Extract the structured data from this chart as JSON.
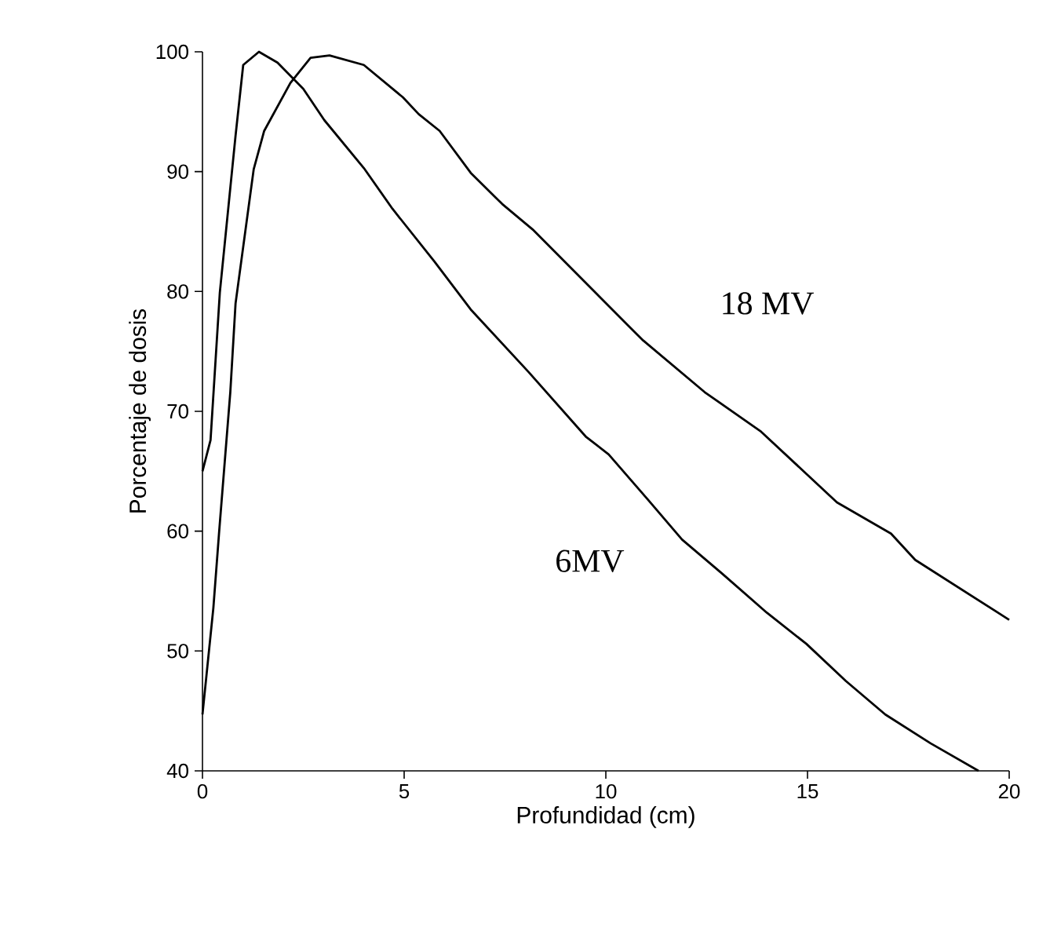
{
  "chart_data": {
    "type": "line",
    "xlabel": "Profundidad (cm)",
    "ylabel": "Porcentaje de dosis",
    "xlim": [
      0,
      20
    ],
    "ylim": [
      40,
      100
    ],
    "xticks": [
      0,
      5,
      10,
      15,
      20
    ],
    "yticks": [
      40,
      50,
      60,
      70,
      80,
      90,
      100
    ],
    "grid": false,
    "legend": false,
    "marker": "none",
    "line_style": "solid",
    "series": [
      {
        "name": "6MV",
        "color": "#000000",
        "x": [
          0,
          0.2,
          0.43,
          0.82,
          1.01,
          1.4,
          1.86,
          2.5,
          3.02,
          4.0,
          4.71,
          5.75,
          6.65,
          8.08,
          9.5,
          10.07,
          11.05,
          11.89,
          12.87,
          13.99,
          14.97,
          15.95,
          16.93,
          18.05,
          19.24
        ],
        "values": [
          65,
          67.6,
          79.9,
          93,
          98.9,
          100,
          99.1,
          96.9,
          94.3,
          90.3,
          86.9,
          82.5,
          78.5,
          73.3,
          67.9,
          66.4,
          62.6,
          59.3,
          56.5,
          53.2,
          50.6,
          47.5,
          44.7,
          42.3,
          40
        ]
      },
      {
        "name": "18 MV",
        "color": "#000000",
        "x": [
          0,
          0.27,
          0.41,
          0.69,
          0.82,
          1.27,
          1.53,
          2.18,
          2.68,
          3.15,
          4.0,
          4.97,
          5.36,
          5.88,
          6.65,
          7.43,
          8.21,
          10.54,
          10.93,
          12.45,
          13.85,
          15.73,
          17.07,
          17.67,
          20
        ],
        "values": [
          44.7,
          53.6,
          59.8,
          71.6,
          79,
          90.2,
          93.4,
          97.4,
          99.5,
          99.7,
          98.9,
          96.2,
          94.8,
          93.4,
          89.9,
          87.3,
          85.1,
          77.2,
          75.9,
          71.6,
          68.3,
          62.4,
          59.8,
          57.6,
          52.6
        ]
      }
    ]
  }
}
